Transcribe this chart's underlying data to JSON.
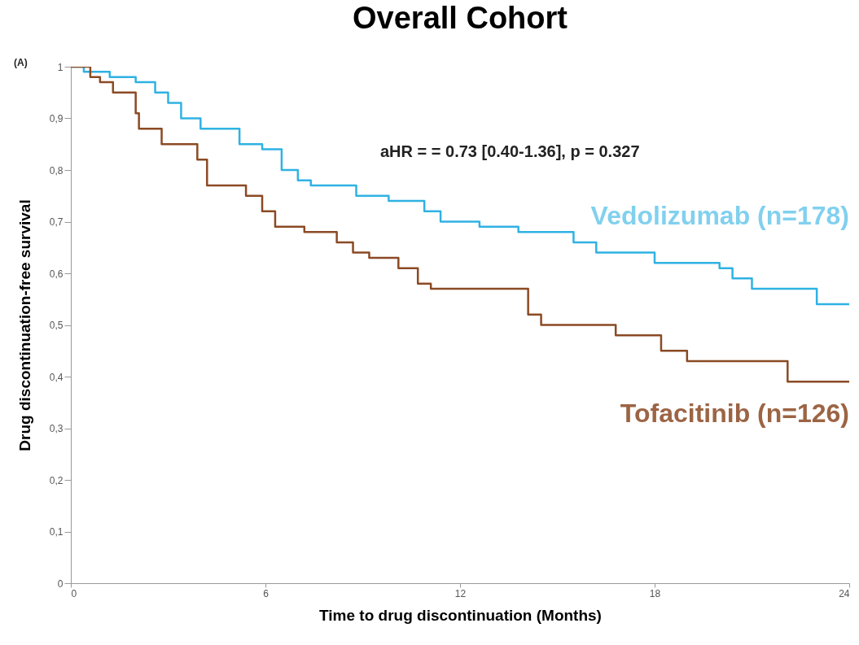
{
  "chart_data": {
    "type": "step",
    "title": "Overall Cohort",
    "xlabel": "Time to drug discontinuation (Months)",
    "ylabel": "Drug discontinuation-free survival",
    "annotations": [
      "(A)",
      "aHR = = 0.73 [0.40-1.36], p = 0.327"
    ],
    "xlim": [
      0,
      24
    ],
    "xticks": [
      0,
      6,
      12,
      18,
      24
    ],
    "ylim": [
      0,
      1
    ],
    "yticks": [
      0,
      {
        "value": 0.1,
        "label": "0,1"
      },
      {
        "value": 0.2,
        "label": "0,2"
      },
      {
        "value": 0.3,
        "label": "0,3"
      },
      {
        "value": 0.4,
        "label": "0,4"
      },
      {
        "value": 0.5,
        "label": "0,5"
      },
      {
        "value": 0.6,
        "label": "0,6"
      },
      {
        "value": 0.7,
        "label": "0,7"
      },
      {
        "value": 0.8,
        "label": "0,8"
      },
      {
        "value": 0.9,
        "label": "0,9"
      },
      1
    ],
    "grid": false,
    "series": [
      {
        "name": "Vedolizumab (n=178)",
        "color": "#2fb2e3",
        "x": [
          0,
          0.4,
          1.2,
          2.0,
          2.6,
          3.0,
          3.4,
          4.0,
          5.2,
          5.9,
          6.5,
          7.0,
          7.4,
          8.8,
          9.8,
          10.9,
          11.4,
          12.6,
          13.8,
          15.5,
          16.2,
          18.0,
          20.0,
          20.4,
          21.0,
          23.0,
          24
        ],
        "values": [
          1,
          0.99,
          0.98,
          0.97,
          0.95,
          0.93,
          0.9,
          0.88,
          0.85,
          0.84,
          0.8,
          0.78,
          0.77,
          0.75,
          0.74,
          0.72,
          0.7,
          0.69,
          0.68,
          0.66,
          0.64,
          0.62,
          0.61,
          0.59,
          0.57,
          0.54,
          0.54
        ]
      },
      {
        "name": "Tofacitinib (n=126)",
        "color": "#8b4a24",
        "x": [
          0,
          0.6,
          0.9,
          1.3,
          2.0,
          2.1,
          2.8,
          3.9,
          4.2,
          5.4,
          5.9,
          6.3,
          7.2,
          8.2,
          8.7,
          9.2,
          10.1,
          10.7,
          11.1,
          14.1,
          14.5,
          16.8,
          18.2,
          19.0,
          22.1,
          24
        ],
        "values": [
          1,
          0.98,
          0.97,
          0.95,
          0.91,
          0.88,
          0.85,
          0.82,
          0.77,
          0.75,
          0.72,
          0.69,
          0.68,
          0.66,
          0.64,
          0.63,
          0.61,
          0.58,
          0.57,
          0.52,
          0.5,
          0.48,
          0.45,
          0.43,
          0.39,
          0.39
        ]
      }
    ]
  }
}
